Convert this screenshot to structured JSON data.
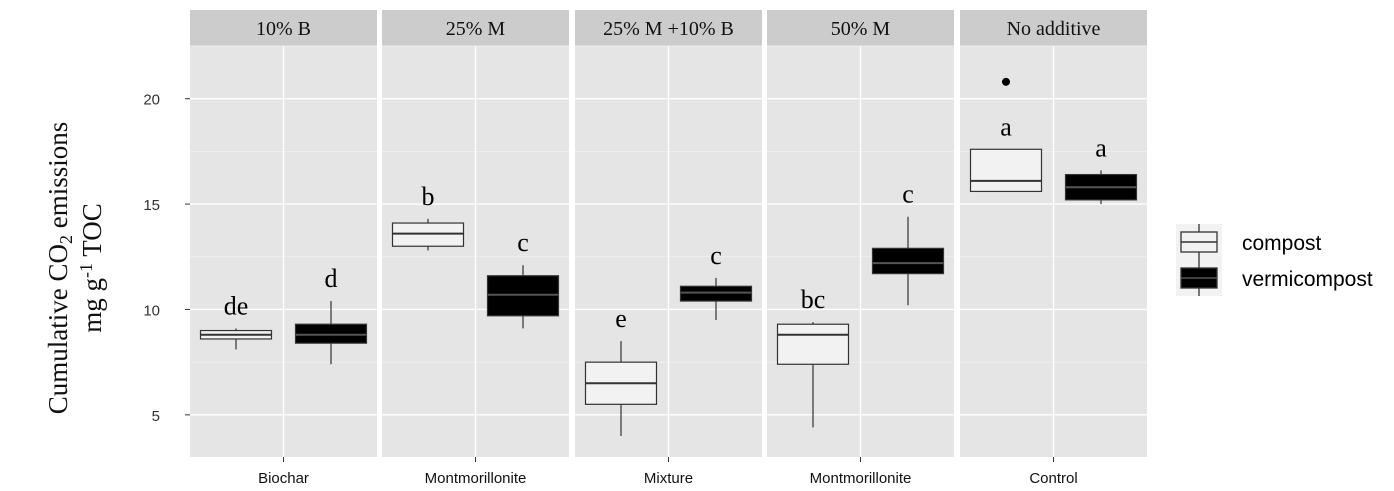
{
  "chart_data": {
    "type": "boxplot",
    "y_axis": {
      "range": [
        3,
        22.5
      ],
      "ticks": [
        "5",
        "10",
        "15",
        "20"
      ],
      "label_line1": "Cumulative CO",
      "label_sub": "2",
      "label_line1_end": " emissions",
      "label_line2_a": "mg g",
      "label_sup": "-1",
      "label_line2_b": " TOC",
      "grid": true
    },
    "series": [
      {
        "name": "compost",
        "fill": "#f2f2f2"
      },
      {
        "name": "vermicompost",
        "fill": "#000000"
      }
    ],
    "panels": [
      {
        "strip": "10% B",
        "x_label": "Biochar",
        "boxes": [
          {
            "series": "compost",
            "min": 8.1,
            "q1": 8.6,
            "median": 8.8,
            "q3": 9.0,
            "max": 9.1,
            "outliers": [],
            "letter": "de"
          },
          {
            "series": "vermicompost",
            "min": 7.4,
            "q1": 8.4,
            "median": 8.8,
            "q3": 9.3,
            "max": 10.4,
            "outliers": [],
            "letter": "d"
          }
        ]
      },
      {
        "strip": "25% M",
        "x_label": "Montmorillonite",
        "boxes": [
          {
            "series": "compost",
            "min": 12.8,
            "q1": 13.0,
            "median": 13.6,
            "q3": 14.1,
            "max": 14.3,
            "outliers": [],
            "letter": "b"
          },
          {
            "series": "vermicompost",
            "min": 9.1,
            "q1": 9.7,
            "median": 10.7,
            "q3": 11.6,
            "max": 12.1,
            "outliers": [],
            "letter": "c"
          }
        ]
      },
      {
        "strip": "25% M +10% B",
        "x_label": "Mixture",
        "boxes": [
          {
            "series": "compost",
            "min": 4.0,
            "q1": 5.5,
            "median": 6.5,
            "q3": 7.5,
            "max": 8.5,
            "outliers": [],
            "letter": "e"
          },
          {
            "series": "vermicompost",
            "min": 9.5,
            "q1": 10.4,
            "median": 10.8,
            "q3": 11.1,
            "max": 11.5,
            "outliers": [],
            "letter": "c"
          }
        ]
      },
      {
        "strip": "50% M",
        "x_label": "Montmorillonite",
        "boxes": [
          {
            "series": "compost",
            "min": 4.4,
            "q1": 7.4,
            "median": 8.8,
            "q3": 9.3,
            "max": 9.4,
            "outliers": [],
            "letter": "bc"
          },
          {
            "series": "vermicompost",
            "min": 10.2,
            "q1": 11.7,
            "median": 12.2,
            "q3": 12.9,
            "max": 14.4,
            "outliers": [],
            "letter": "c"
          }
        ]
      },
      {
        "strip": "No additive",
        "x_label": "Control",
        "boxes": [
          {
            "series": "compost",
            "min": 15.6,
            "q1": 15.6,
            "median": 16.1,
            "q3": 17.6,
            "max": 17.6,
            "outliers": [
              20.8
            ],
            "letter": "a"
          },
          {
            "series": "vermicompost",
            "min": 15.0,
            "q1": 15.2,
            "median": 15.8,
            "q3": 16.4,
            "max": 16.6,
            "outliers": [],
            "letter": "a"
          }
        ]
      }
    ]
  }
}
